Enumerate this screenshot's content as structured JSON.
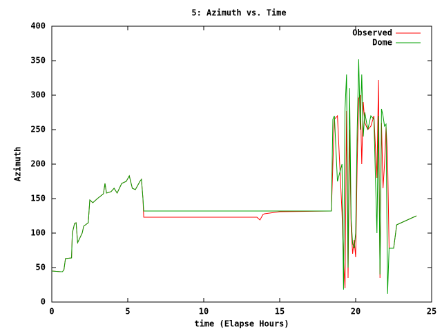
{
  "chart_data": {
    "type": "line",
    "title": "5: Azimuth vs. Time",
    "xlabel": "time (Elapse Hours)",
    "ylabel": "Azimuth",
    "x": [
      0,
      0.6,
      0.7,
      0.8,
      0.9,
      1.3,
      1.35,
      1.5,
      1.6,
      1.7,
      2.0,
      2.1,
      2.4,
      2.5,
      2.7,
      3.0,
      3.4,
      3.5,
      3.6,
      3.9,
      4.1,
      4.3,
      4.6,
      4.9,
      5.1,
      5.3,
      5.5,
      5.8,
      5.9,
      6.0,
      6.05,
      13.5,
      13.7,
      13.9,
      14.0,
      15.0,
      18.4,
      18.5,
      18.6,
      18.8,
      19.1,
      19.2,
      19.3,
      19.4,
      19.5,
      19.6,
      19.7,
      19.8,
      19.9,
      20.0,
      20.1,
      20.2,
      20.3,
      20.4,
      20.5,
      20.6,
      20.8,
      21.0,
      21.2,
      21.4,
      21.5,
      21.6,
      21.7,
      21.8,
      21.9,
      22.0,
      22.1,
      22.2,
      22.3,
      22.4,
      22.5,
      22.7,
      23.0,
      23.5,
      24.0
    ],
    "series": [
      {
        "name": "Observed",
        "color": "#ff0000",
        "values": [
          45,
          44,
          44,
          47,
          63,
          64,
          100,
          114,
          115,
          86,
          100,
          110,
          115,
          148,
          144,
          150,
          157,
          172,
          158,
          160,
          165,
          158,
          172,
          175,
          183,
          165,
          163,
          175,
          178,
          150,
          123,
          123,
          119,
          127,
          128,
          131,
          132,
          200,
          265,
          270,
          130,
          60,
          20,
          277,
          35,
          250,
          110,
          70,
          90,
          65,
          200,
          295,
          300,
          200,
          290,
          260,
          250,
          255,
          270,
          180,
          322,
          35,
          260,
          165,
          200,
          255,
          210,
          78,
          78,
          78,
          78,
          112,
          115,
          120,
          125
        ]
      },
      {
        "name": "Dome",
        "color": "#00a000",
        "values": [
          45,
          44,
          44,
          47,
          63,
          64,
          100,
          114,
          115,
          86,
          100,
          110,
          115,
          148,
          144,
          150,
          157,
          172,
          158,
          160,
          165,
          158,
          172,
          175,
          183,
          165,
          163,
          175,
          178,
          150,
          132,
          132,
          132,
          132,
          132,
          132,
          132,
          265,
          270,
          175,
          200,
          18,
          280,
          330,
          50,
          310,
          120,
          85,
          78,
          100,
          250,
          352,
          250,
          330,
          240,
          275,
          250,
          270,
          265,
          100,
          270,
          40,
          280,
          270,
          255,
          258,
          12,
          78,
          78,
          78,
          78,
          112,
          115,
          120,
          125
        ]
      }
    ],
    "xlim": [
      0,
      25
    ],
    "xticks": [
      0,
      5,
      10,
      15,
      20,
      25
    ],
    "ylim": [
      0,
      400
    ],
    "yticks": [
      0,
      50,
      100,
      150,
      200,
      250,
      300,
      350,
      400
    ],
    "legend": "top-right"
  }
}
